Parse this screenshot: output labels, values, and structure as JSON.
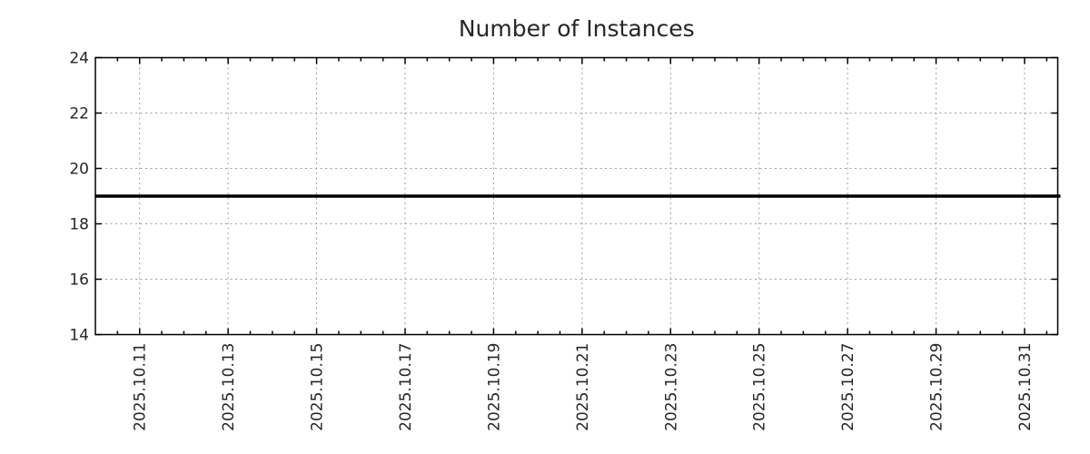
{
  "chart_data": {
    "type": "line",
    "title": "Number of Instances",
    "x_axis": {
      "type": "time",
      "major_tick_labels": [
        "2025.10.11",
        "2025.10.13",
        "2025.10.15",
        "2025.10.17",
        "2025.10.19",
        "2025.10.21",
        "2025.10.23",
        "2025.10.25",
        "2025.10.27",
        "2025.10.29",
        "2025.10.31"
      ],
      "major_tick_step_days": 2,
      "minor_tick_step_days": 0.5,
      "lead_in_days": 1,
      "lead_out_days": 0.75,
      "label_rotation_deg": -90
    },
    "y_axis": {
      "min": 14,
      "max": 24,
      "tick_step": 2,
      "tick_labels": [
        "14",
        "16",
        "18",
        "20",
        "22",
        "24"
      ],
      "grid_values": [
        16,
        18,
        20,
        22
      ]
    },
    "series": [
      {
        "name": "Number of Instances",
        "shape": "constant-horizontal-line",
        "value": 19,
        "color": "#000000",
        "line_width": 3.5
      }
    ],
    "grid": {
      "show": true,
      "style": "dotted",
      "color": "#9e9e9e"
    },
    "legend": {
      "show": false
    },
    "colors": {
      "background": "#ffffff",
      "border": "#000000",
      "tick": "#000000",
      "label": "#262626",
      "title": "#262626"
    }
  }
}
